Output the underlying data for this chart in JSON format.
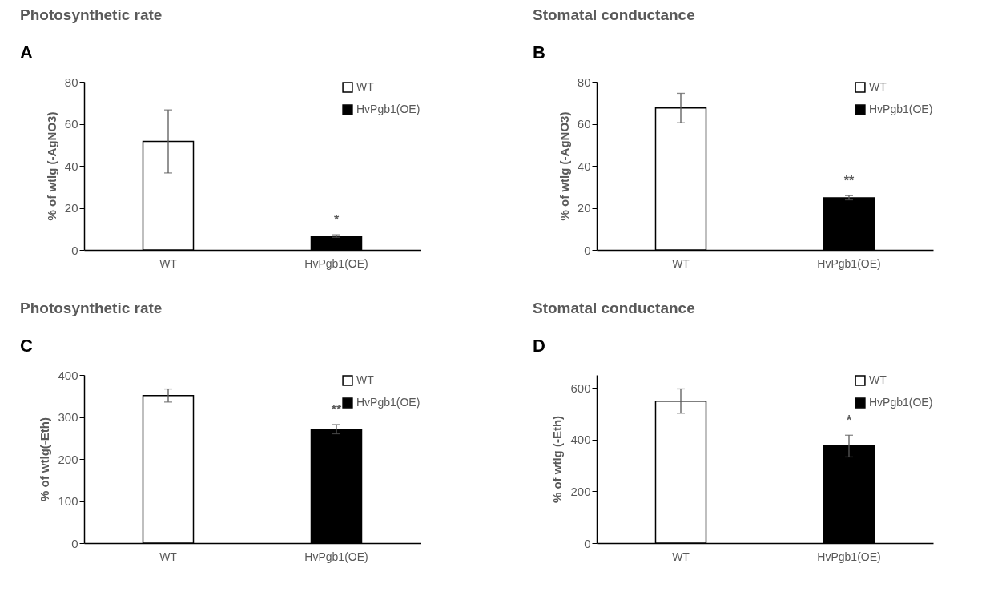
{
  "chart_data": [
    {
      "type": "bar",
      "title": "Photosynthetic rate",
      "ylabel": "% of wtlg (-AgNO3)",
      "categories": [
        "WT",
        "HvPgb1(OE)"
      ],
      "series": [
        {
          "name": "WT",
          "color": "#ffffff",
          "values": [
            51.6,
            null
          ],
          "errors": [
            15,
            null
          ]
        },
        {
          "name": "HvPgb1(OE)",
          "color": "#000000",
          "values": [
            null,
            6.6
          ],
          "errors": [
            null,
            0.6
          ]
        }
      ],
      "ylim": [
        0,
        80
      ],
      "yticks": [
        0,
        20,
        40,
        60,
        80
      ],
      "grid": false,
      "legend": "top right",
      "annotations": [
        "A",
        "*"
      ]
    },
    {
      "type": "bar",
      "title": "Stomatal conductance",
      "ylabel": "% of wtlg (-AgNO3)",
      "categories": [
        "WT",
        "HvPgb1(OE)"
      ],
      "series": [
        {
          "name": "WT",
          "color": "#ffffff",
          "values": [
            67.5,
            null
          ],
          "errors": [
            7,
            null
          ]
        },
        {
          "name": "HvPgb1(OE)",
          "color": "#000000",
          "values": [
            null,
            24.8
          ],
          "errors": [
            null,
            1
          ]
        }
      ],
      "ylim": [
        0,
        80
      ],
      "yticks": [
        0,
        20,
        40,
        60,
        80
      ],
      "grid": false,
      "legend": "top right",
      "annotations": [
        "B",
        "**"
      ]
    },
    {
      "type": "bar",
      "title": "Photosynthetic rate",
      "ylabel": "% of wtlg(-Eth)",
      "categories": [
        "WT",
        "HvPgb1(OE)"
      ],
      "series": [
        {
          "name": "WT",
          "color": "#ffffff",
          "values": [
            351,
            null
          ],
          "errors": [
            15.5,
            null
          ]
        },
        {
          "name": "HvPgb1(OE)",
          "color": "#000000",
          "values": [
            null,
            271
          ],
          "errors": [
            null,
            11
          ]
        }
      ],
      "ylim": [
        0,
        400
      ],
      "yticks": [
        0,
        100,
        200,
        300,
        400
      ],
      "grid": false,
      "legend": "top right",
      "annotations": [
        "C",
        "**"
      ]
    },
    {
      "type": "bar",
      "title": "Stomatal conductance",
      "ylabel": "% of wtlg (-Eth)",
      "categories": [
        "WT",
        "HvPgb1(OE)"
      ],
      "series": [
        {
          "name": "WT",
          "color": "#ffffff",
          "values": [
            549,
            null
          ],
          "errors": [
            47,
            null
          ]
        },
        {
          "name": "HvPgb1(OE)",
          "color": "#000000",
          "values": [
            null,
            375
          ],
          "errors": [
            null,
            42
          ]
        }
      ],
      "ylim": [
        0,
        650
      ],
      "yticks": [
        0,
        200,
        400,
        600
      ],
      "grid": false,
      "legend": "top right",
      "annotations": [
        "D",
        "*"
      ]
    }
  ]
}
